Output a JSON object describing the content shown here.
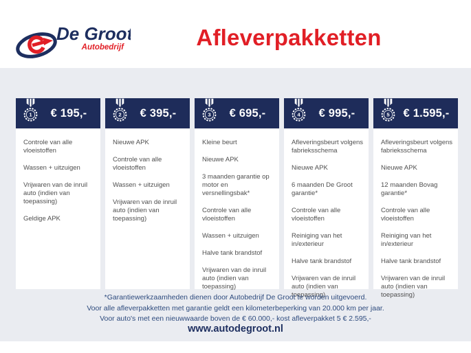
{
  "colors": {
    "brand_navy": "#1d2e5f",
    "brand_red": "#e11f26",
    "card_header_navy": "#1e2c5a",
    "page_gray": "#eaecf1",
    "item_text": "#4f4f4f",
    "footnote_blue": "#2d4a7d"
  },
  "logo": {
    "name": "De Groot",
    "subtitle": "Autobedrijf"
  },
  "title": "Afleverpakketten",
  "packages": [
    {
      "number": "1",
      "price": "€ 195,-",
      "items": [
        "Controle van alle vloeistoffen",
        "Wassen + uitzuigen",
        "Vrijwaren van de inruil auto (indien van toepassing)",
        "Geldige APK"
      ]
    },
    {
      "number": "2",
      "price": "€ 395,-",
      "items": [
        "Nieuwe APK",
        "Controle van alle vloeistoffen",
        "Wassen + uitzuigen",
        "Vrijwaren van de inruil auto (indien van toepassing)"
      ]
    },
    {
      "number": "3",
      "price": "€ 695,-",
      "items": [
        "Kleine beurt",
        "Nieuwe APK",
        "3 maanden garantie op motor en versnellingsbak*",
        "Controle van alle vloeistoffen",
        "Wassen + uitzuigen",
        "Halve tank brandstof",
        "Vrijwaren van de inruil auto (indien van toepassing)"
      ]
    },
    {
      "number": "4",
      "price": "€ 995,-",
      "items": [
        "Afleveringsbeurt volgens fabrieksschema",
        "Nieuwe APK",
        "6 maanden De Groot garantie*",
        "Controle van alle vloeistoffen",
        "Reiniging van het in/exterieur",
        "Halve tank brandstof",
        "Vrijwaren van de inruil auto (indien van toepassing)"
      ]
    },
    {
      "number": "5",
      "price": "€ 1.595,-",
      "items": [
        "Afleveringsbeurt volgens fabrieksschema",
        "Nieuwe APK",
        "12 maanden Bovag garantie*",
        "Controle van alle vloeistoffen",
        "Reiniging van het in/exterieur",
        "Halve tank brandstof",
        "Vrijwaren van de inruil auto (indien van toepassing)"
      ]
    }
  ],
  "footnotes": [
    "*Garantiewerkzaamheden dienen door Autobedrijf De Groot te worden uitgevoerd.",
    "Voor alle afleverpakketten met garantie geldt een kilometerbeperking van 20.000 km per jaar.",
    "Voor auto's met een nieuwwaarde boven de € 60.000,- kost afleverpakket 5 € 2.595,-"
  ],
  "website": "www.autodegroot.nl"
}
